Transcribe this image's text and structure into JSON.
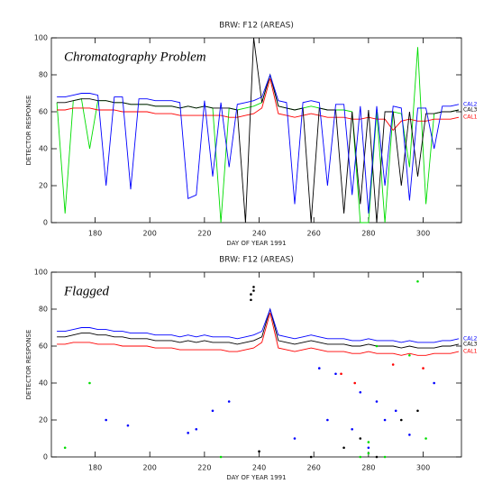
{
  "chart_data": [
    {
      "type": "line",
      "title": "BRW: F12 (AREAS)",
      "xlabel": "DAY OF YEAR 1991",
      "ylabel": "DETECTOR RESPONSE",
      "annotation": "Chromatography Problem",
      "xlim": [
        164,
        314
      ],
      "xticks": [
        180,
        200,
        220,
        240,
        260,
        280,
        300
      ],
      "ylim": [
        0,
        100
      ],
      "yticks": [
        0,
        20,
        40,
        60,
        80,
        100
      ],
      "x": [
        166,
        169,
        172,
        175,
        178,
        181,
        184,
        187,
        190,
        193,
        196,
        199,
        202,
        205,
        208,
        211,
        214,
        217,
        220,
        223,
        226,
        229,
        232,
        235,
        238,
        241,
        244,
        247,
        250,
        253,
        256,
        259,
        262,
        265,
        268,
        271,
        274,
        277,
        280,
        283,
        286,
        289,
        292,
        295,
        298,
        301,
        304,
        307,
        310,
        313
      ],
      "series": [
        {
          "color": "#00dd00",
          "values": [
            65,
            5,
            66,
            67,
            40,
            66,
            66,
            65,
            65,
            64,
            64,
            64,
            63,
            63,
            63,
            62,
            63,
            62,
            63,
            62,
            0,
            62,
            61,
            62,
            63,
            65,
            80,
            63,
            62,
            61,
            62,
            63,
            62,
            61,
            61,
            61,
            60,
            0,
            0,
            60,
            0,
            60,
            59,
            30,
            95,
            10,
            59,
            60,
            60,
            61
          ]
        },
        {
          "name": "CAL1",
          "color": "#ff0000",
          "values": [
            61,
            61,
            62,
            62,
            62,
            61,
            61,
            61,
            60,
            60,
            60,
            60,
            59,
            59,
            59,
            58,
            58,
            58,
            58,
            58,
            58,
            57,
            57,
            58,
            59,
            62,
            78,
            59,
            58,
            57,
            58,
            59,
            58,
            57,
            57,
            57,
            56,
            56,
            57,
            56,
            56,
            50,
            55,
            56,
            55,
            55,
            56,
            56,
            56,
            57
          ]
        },
        {
          "name": "CAL3",
          "color": "#000000",
          "values": [
            65,
            65,
            66,
            67,
            67,
            66,
            66,
            65,
            65,
            64,
            64,
            64,
            63,
            63,
            63,
            62,
            63,
            62,
            63,
            62,
            62,
            62,
            61,
            0,
            100,
            65,
            80,
            63,
            62,
            61,
            62,
            0,
            62,
            61,
            61,
            5,
            60,
            10,
            61,
            0,
            60,
            60,
            20,
            60,
            25,
            59,
            59,
            60,
            60,
            61
          ]
        },
        {
          "name": "CAL2",
          "color": "#0000ff",
          "values": [
            68,
            68,
            69,
            70,
            70,
            69,
            20,
            68,
            68,
            18,
            67,
            67,
            66,
            66,
            66,
            65,
            13,
            15,
            66,
            25,
            65,
            30,
            64,
            65,
            66,
            68,
            80,
            66,
            65,
            10,
            65,
            66,
            65,
            20,
            64,
            64,
            15,
            63,
            5,
            63,
            20,
            63,
            62,
            12,
            62,
            62,
            40,
            63,
            63,
            64
          ]
        }
      ]
    },
    {
      "type": "line",
      "title": "BRW: F12 (AREAS)",
      "xlabel": "DAY OF YEAR 1991",
      "ylabel": "DETECTOR RESPONSE",
      "annotation": "Flagged",
      "xlim": [
        164,
        314
      ],
      "xticks": [
        180,
        200,
        220,
        240,
        260,
        280,
        300
      ],
      "ylim": [
        0,
        100
      ],
      "yticks": [
        0,
        20,
        40,
        60,
        80,
        100
      ],
      "x": [
        166,
        169,
        172,
        175,
        178,
        181,
        184,
        187,
        190,
        193,
        196,
        199,
        202,
        205,
        208,
        211,
        214,
        217,
        220,
        223,
        226,
        229,
        232,
        235,
        238,
        241,
        244,
        247,
        250,
        253,
        256,
        259,
        262,
        265,
        268,
        271,
        274,
        277,
        280,
        283,
        286,
        289,
        292,
        295,
        298,
        301,
        304,
        307,
        310,
        313
      ],
      "series": [
        {
          "name": "CAL1",
          "color": "#ff0000",
          "values": [
            61,
            61,
            62,
            62,
            62,
            61,
            61,
            61,
            60,
            60,
            60,
            60,
            59,
            59,
            59,
            58,
            58,
            58,
            58,
            58,
            58,
            57,
            57,
            58,
            59,
            62,
            78,
            59,
            58,
            57,
            58,
            59,
            58,
            57,
            57,
            57,
            56,
            56,
            57,
            56,
            56,
            56,
            55,
            56,
            55,
            55,
            56,
            56,
            56,
            57
          ]
        },
        {
          "name": "CAL3",
          "color": "#000000",
          "values": [
            65,
            65,
            66,
            67,
            67,
            66,
            66,
            65,
            65,
            64,
            64,
            64,
            63,
            63,
            63,
            62,
            63,
            62,
            63,
            62,
            62,
            62,
            61,
            62,
            63,
            65,
            80,
            63,
            62,
            61,
            62,
            63,
            62,
            61,
            61,
            61,
            60,
            60,
            61,
            60,
            60,
            60,
            59,
            60,
            59,
            59,
            59,
            60,
            60,
            61
          ]
        },
        {
          "name": "CAL2",
          "color": "#0000ff",
          "values": [
            68,
            68,
            69,
            70,
            70,
            69,
            69,
            68,
            68,
            67,
            67,
            67,
            66,
            66,
            66,
            65,
            66,
            65,
            66,
            65,
            65,
            65,
            64,
            65,
            66,
            68,
            80,
            66,
            65,
            64,
            65,
            66,
            65,
            64,
            64,
            64,
            63,
            63,
            64,
            63,
            63,
            63,
            62,
            63,
            62,
            62,
            62,
            63,
            63,
            64
          ]
        },
        {
          "color": "#00dd00",
          "points": true,
          "x": [
            169,
            178,
            226,
            277,
            280,
            280,
            286,
            298,
            301,
            295,
            283
          ],
          "values": [
            5,
            40,
            0,
            0,
            2,
            8,
            0,
            95,
            10,
            55,
            60
          ]
        },
        {
          "color": "#ff0000",
          "points": true,
          "x": [
            289,
            270,
            275,
            300
          ],
          "values": [
            50,
            45,
            40,
            48
          ]
        },
        {
          "color": "#000000",
          "points": true,
          "x": [
            237,
            237,
            238,
            238,
            259,
            271,
            277,
            283,
            292,
            298,
            240
          ],
          "values": [
            85,
            88,
            90,
            92,
            0,
            5,
            10,
            0,
            20,
            25,
            3
          ]
        },
        {
          "color": "#0000ff",
          "points": true,
          "x": [
            184,
            192,
            214,
            217,
            223,
            229,
            253,
            265,
            274,
            280,
            286,
            295,
            304,
            262,
            268,
            277,
            283,
            290
          ],
          "values": [
            20,
            17,
            13,
            15,
            25,
            30,
            10,
            20,
            15,
            5,
            20,
            12,
            40,
            48,
            45,
            35,
            30,
            25
          ]
        }
      ]
    }
  ]
}
